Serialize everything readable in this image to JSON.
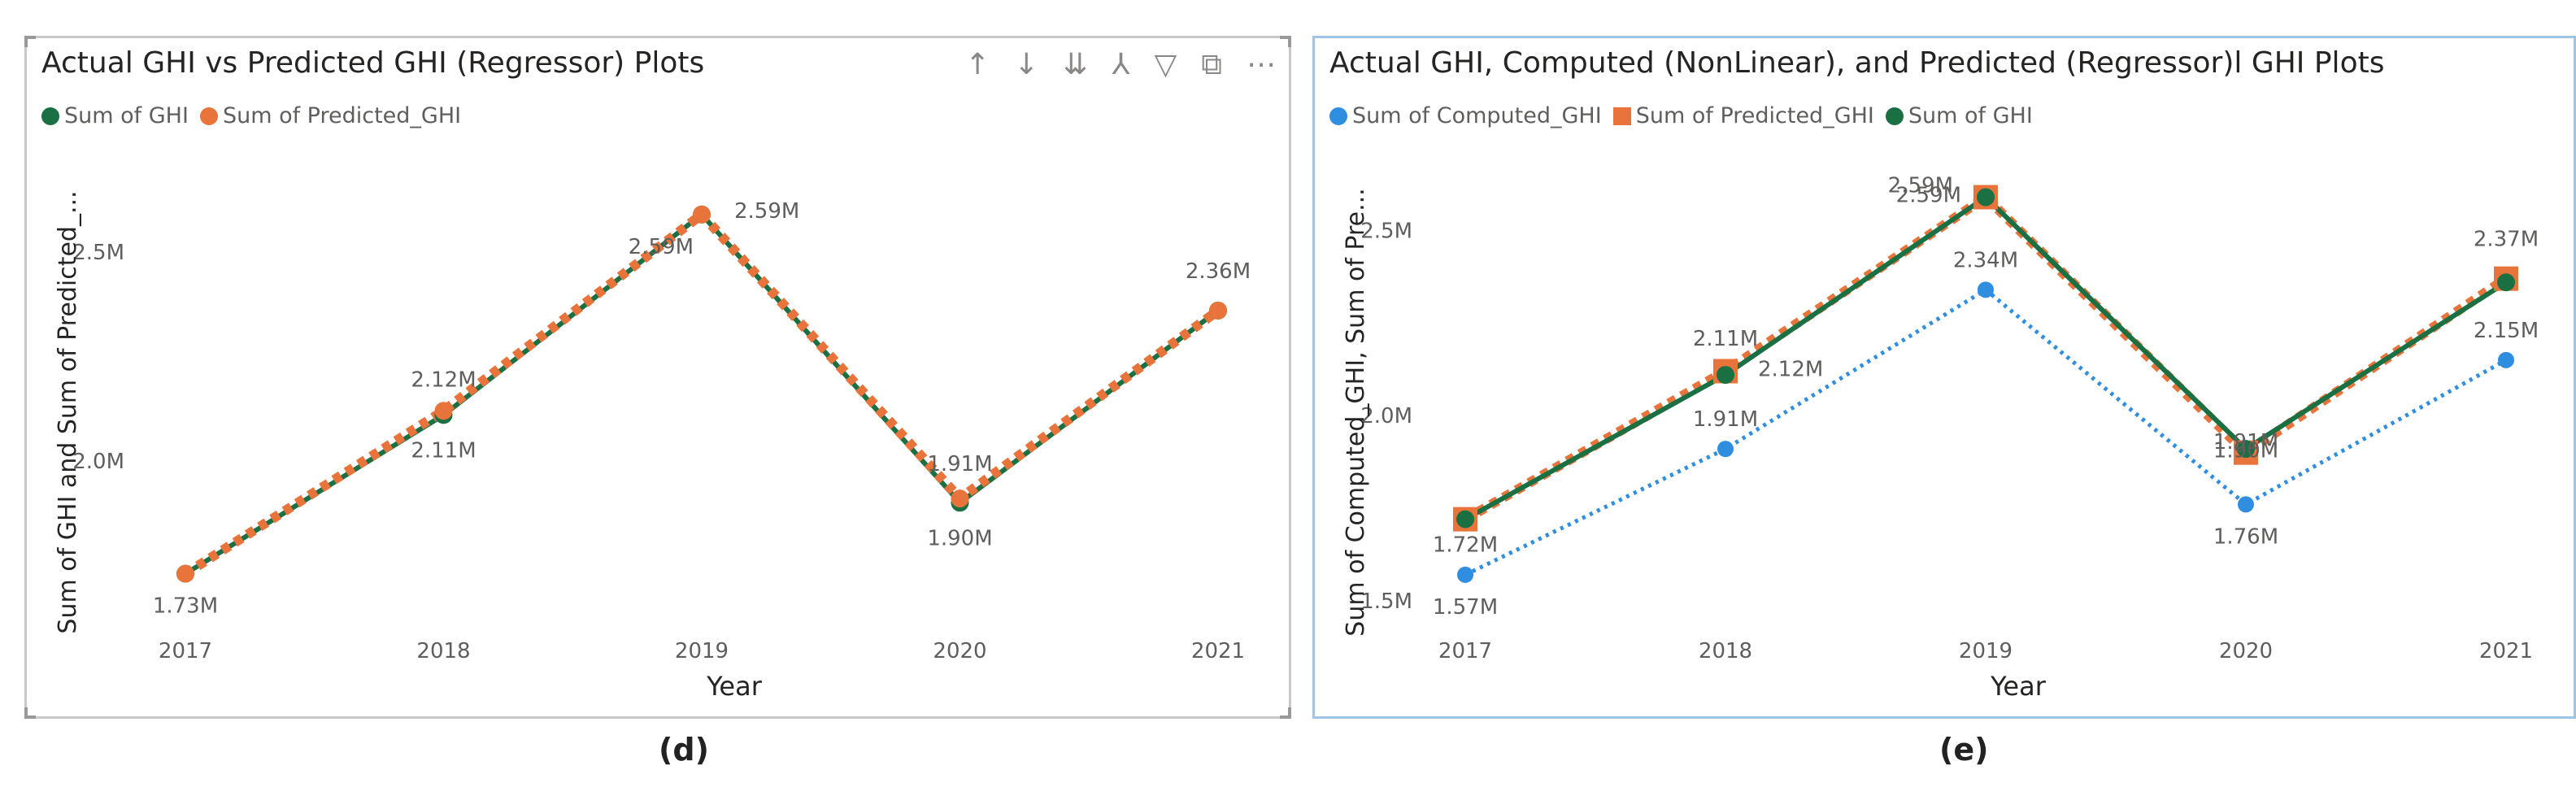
{
  "panels": [
    {
      "caption": "(d)",
      "title": "Actual GHI vs Predicted GHI (Regressor) Plots",
      "toolbar_icons": [
        "arrow-up-icon",
        "arrow-down-icon",
        "double-arrow-down-icon",
        "expand-hierarchy-icon",
        "filter-icon",
        "focus-mode-icon",
        "more-options-icon"
      ],
      "toolbar_glyphs": [
        "↑",
        "↓",
        "⇊",
        "⅄",
        "▽",
        "⧉",
        "⋯"
      ]
    },
    {
      "caption": "(e)",
      "title": "Actual GHI, Computed (NonLinear), and Predicted (Regressor)l GHI Plots"
    }
  ],
  "chart_data": [
    {
      "type": "line",
      "title": "Actual GHI vs Predicted GHI (Regressor) Plots",
      "xlabel": "Year",
      "ylabel": "Sum of GHI and Sum of Predicted_...",
      "categories": [
        "2017",
        "2018",
        "2019",
        "2020",
        "2021"
      ],
      "ylim": [
        1.63,
        2.72
      ],
      "yticks": [
        2.0,
        2.5
      ],
      "ytick_labels": [
        "2.0M",
        "2.5M"
      ],
      "legend_position": "top-left",
      "grid": false,
      "series": [
        {
          "name": "Sum of GHI",
          "color": "#1a7043",
          "marker": "circle",
          "values": [
            1.73,
            2.11,
            2.59,
            1.9,
            2.36
          ],
          "labels": [
            "1.73M",
            "2.11M",
            "2.59M",
            "1.90M",
            ""
          ]
        },
        {
          "name": "Sum of Predicted_GHI",
          "color": "#e8743b",
          "marker": "circle",
          "dashed": true,
          "values": [
            1.73,
            2.12,
            2.59,
            1.91,
            2.36
          ],
          "labels": [
            "",
            "2.12M",
            "2.59M",
            "1.91M",
            "2.36M"
          ]
        }
      ]
    },
    {
      "type": "line",
      "title": "Actual GHI, Computed (NonLinear), and Predicted (Regressor)l GHI Plots",
      "xlabel": "Year",
      "ylabel": "Sum of Computed_GHI, Sum of Pre...",
      "categories": [
        "2017",
        "2018",
        "2019",
        "2020",
        "2021"
      ],
      "ylim": [
        1.46,
        2.69
      ],
      "yticks": [
        1.5,
        2.0,
        2.5
      ],
      "ytick_labels": [
        "1.5M",
        "2.0M",
        "2.5M"
      ],
      "legend_position": "top-left",
      "grid": false,
      "series": [
        {
          "name": "Sum of Computed_GHI",
          "color": "#2f8ee0",
          "marker": "circle",
          "dotted": true,
          "values": [
            1.57,
            1.91,
            2.34,
            1.76,
            2.15
          ],
          "labels": [
            "1.57M",
            "1.91M",
            "2.34M",
            "1.76M",
            "2.15M"
          ]
        },
        {
          "name": "Sum of Predicted_GHI",
          "color": "#e8743b",
          "marker": "square",
          "dashed": true,
          "values": [
            1.72,
            2.12,
            2.59,
            1.9,
            2.37
          ],
          "labels": [
            "1.72M",
            "2.12M",
            "2.59M",
            "1.90M",
            "2.37M"
          ]
        },
        {
          "name": "Sum of GHI",
          "color": "#1a7043",
          "marker": "circle",
          "values": [
            1.72,
            2.11,
            2.59,
            1.91,
            2.36
          ],
          "labels": [
            "",
            "2.11M",
            "2.59M",
            "1.91M",
            ""
          ]
        }
      ]
    }
  ]
}
